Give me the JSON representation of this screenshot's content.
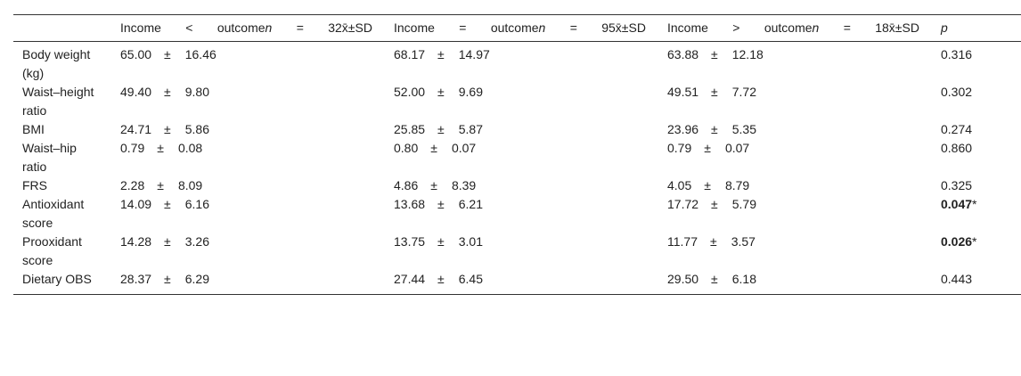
{
  "table": {
    "header": [
      [
        "Income",
        "<",
        "outcome",
        "n",
        "=",
        "32x̄±SD"
      ],
      [
        "Income",
        "=",
        "outcome",
        "n",
        "=",
        "95x̄±SD"
      ],
      [
        "Income",
        ">",
        "outcome",
        "n",
        "=",
        "18x̄±SD"
      ]
    ],
    "p_header": "p",
    "rows": [
      {
        "label": "Body weight (kg)",
        "cells": [
          [
            "65.00",
            "±",
            "16.46"
          ],
          [
            "68.17",
            "±",
            "14.97"
          ],
          [
            "63.88",
            "±",
            "12.18"
          ]
        ],
        "p": "0.316"
      },
      {
        "label": "Waist–height ratio",
        "cells": [
          [
            "49.40",
            "±",
            "9.80"
          ],
          [
            "52.00",
            "±",
            "9.69"
          ],
          [
            "49.51",
            "±",
            "7.72"
          ]
        ],
        "p": "0.302"
      },
      {
        "label": "BMI",
        "cells": [
          [
            "24.71",
            "±",
            "5.86"
          ],
          [
            "25.85",
            "±",
            "5.87"
          ],
          [
            "23.96",
            "±",
            "5.35"
          ]
        ],
        "p": "0.274"
      },
      {
        "label": "Waist–hip ratio",
        "cells": [
          [
            "0.79",
            "±",
            "0.08"
          ],
          [
            "0.80",
            "±",
            "0.07"
          ],
          [
            "0.79",
            "±",
            "0.07"
          ]
        ],
        "p": "0.860"
      },
      {
        "label": "FRS",
        "cells": [
          [
            "2.28",
            "±",
            "8.09"
          ],
          [
            "4.86",
            "±",
            "8.39"
          ],
          [
            "4.05",
            "±",
            "8.79"
          ]
        ],
        "p": "0.325"
      },
      {
        "label": "Antioxidant score",
        "cells": [
          [
            "14.09",
            "±",
            "6.16"
          ],
          [
            "13.68",
            "±",
            "6.21"
          ],
          [
            "17.72",
            "±",
            "5.79"
          ]
        ],
        "p": "0.047",
        "p_bold": true,
        "p_mark": "*"
      },
      {
        "label": "Prooxidant score",
        "cells": [
          [
            "14.28",
            "±",
            "3.26"
          ],
          [
            "13.75",
            "±",
            "3.01"
          ],
          [
            "11.77",
            "±",
            "3.57"
          ]
        ],
        "p": "0.026",
        "p_bold": true,
        "p_mark": "*"
      },
      {
        "label": "Dietary OBS",
        "cells": [
          [
            "28.37",
            "±",
            "6.29"
          ],
          [
            "27.44",
            "±",
            "6.45"
          ],
          [
            "29.50",
            "±",
            "6.18"
          ]
        ],
        "p": "0.443"
      }
    ]
  }
}
